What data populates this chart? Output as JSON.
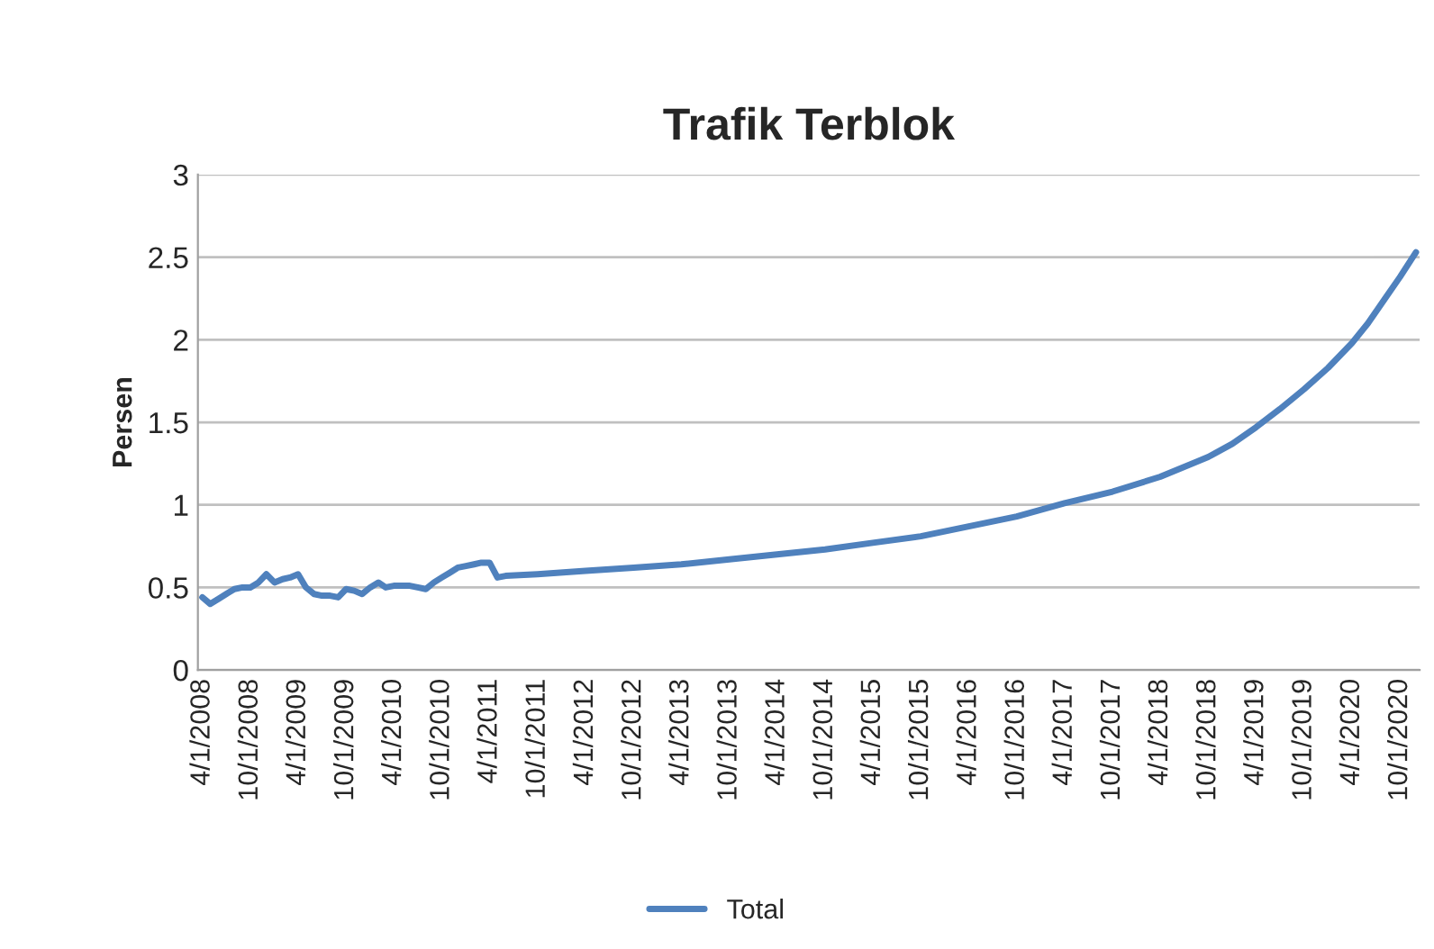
{
  "chart_data": {
    "type": "line",
    "title": "Trafik Terblok",
    "ylabel": "Persen",
    "x": [
      "2008-04",
      "2008-05",
      "2008-06",
      "2008-07",
      "2008-08",
      "2008-09",
      "2008-10",
      "2008-11",
      "2008-12",
      "2009-01",
      "2009-02",
      "2009-03",
      "2009-04",
      "2009-05",
      "2009-06",
      "2009-07",
      "2009-08",
      "2009-09",
      "2009-10",
      "2009-11",
      "2009-12",
      "2010-01",
      "2010-02",
      "2010-03",
      "2010-04",
      "2010-05",
      "2010-06",
      "2010-07",
      "2010-08",
      "2010-09",
      "2010-10",
      "2010-11",
      "2010-12",
      "2011-01",
      "2011-02",
      "2011-03",
      "2011-04",
      "2011-05",
      "2011-06",
      "2011-10",
      "2012-04",
      "2012-10",
      "2013-04",
      "2013-10",
      "2014-04",
      "2014-10",
      "2015-04",
      "2015-10",
      "2016-04",
      "2016-10",
      "2017-04",
      "2017-10",
      "2018-04",
      "2018-10",
      "2019-01",
      "2019-04",
      "2019-07",
      "2019-10",
      "2020-01",
      "2020-04",
      "2020-06",
      "2020-08",
      "2020-10",
      "2020-12"
    ],
    "series": [
      {
        "name": "Total",
        "color": "#4f81bd",
        "values": [
          0.44,
          0.4,
          0.43,
          0.46,
          0.49,
          0.5,
          0.5,
          0.53,
          0.58,
          0.53,
          0.55,
          0.56,
          0.58,
          0.5,
          0.46,
          0.45,
          0.45,
          0.44,
          0.49,
          0.48,
          0.46,
          0.5,
          0.53,
          0.5,
          0.51,
          0.51,
          0.51,
          0.5,
          0.49,
          0.53,
          0.56,
          0.59,
          0.62,
          0.63,
          0.64,
          0.65,
          0.65,
          0.56,
          0.57,
          0.58,
          0.6,
          0.62,
          0.64,
          0.67,
          0.7,
          0.73,
          0.77,
          0.81,
          0.87,
          0.93,
          1.01,
          1.08,
          1.17,
          1.29,
          1.37,
          1.47,
          1.58,
          1.7,
          1.83,
          1.98,
          2.1,
          2.24,
          2.38,
          2.53
        ]
      }
    ],
    "xlim": [
      "2008-03-15",
      "2020-12-15"
    ],
    "xticks": [
      {
        "value": "2008-04-01",
        "label": "4/1/2008"
      },
      {
        "value": "2008-10-01",
        "label": "10/1/2008"
      },
      {
        "value": "2009-04-01",
        "label": "4/1/2009"
      },
      {
        "value": "2009-10-01",
        "label": "10/1/2009"
      },
      {
        "value": "2010-04-01",
        "label": "4/1/2010"
      },
      {
        "value": "2010-10-01",
        "label": "10/1/2010"
      },
      {
        "value": "2011-04-01",
        "label": "4/1/2011"
      },
      {
        "value": "2011-10-01",
        "label": "10/1/2011"
      },
      {
        "value": "2012-04-01",
        "label": "4/1/2012"
      },
      {
        "value": "2012-10-01",
        "label": "10/1/2012"
      },
      {
        "value": "2013-04-01",
        "label": "4/1/2013"
      },
      {
        "value": "2013-10-01",
        "label": "10/1/2013"
      },
      {
        "value": "2014-04-01",
        "label": "4/1/2014"
      },
      {
        "value": "2014-10-01",
        "label": "10/1/2014"
      },
      {
        "value": "2015-04-01",
        "label": "4/1/2015"
      },
      {
        "value": "2015-10-01",
        "label": "10/1/2015"
      },
      {
        "value": "2016-04-01",
        "label": "4/1/2016"
      },
      {
        "value": "2016-10-01",
        "label": "10/1/2016"
      },
      {
        "value": "2017-04-01",
        "label": "4/1/2017"
      },
      {
        "value": "2017-10-01",
        "label": "10/1/2017"
      },
      {
        "value": "2018-04-01",
        "label": "4/1/2018"
      },
      {
        "value": "2018-10-01",
        "label": "10/1/2018"
      },
      {
        "value": "2019-04-01",
        "label": "4/1/2019"
      },
      {
        "value": "2019-10-01",
        "label": "10/1/2019"
      },
      {
        "value": "2020-04-01",
        "label": "4/1/2020"
      },
      {
        "value": "2020-10-01",
        "label": "10/1/2020"
      }
    ],
    "ylim": [
      0,
      3
    ],
    "yticks": [
      0,
      0.5,
      1,
      1.5,
      2,
      2.5,
      3
    ],
    "grid": "y",
    "legend": "bottom",
    "marker": "none",
    "line_style": "solid"
  }
}
